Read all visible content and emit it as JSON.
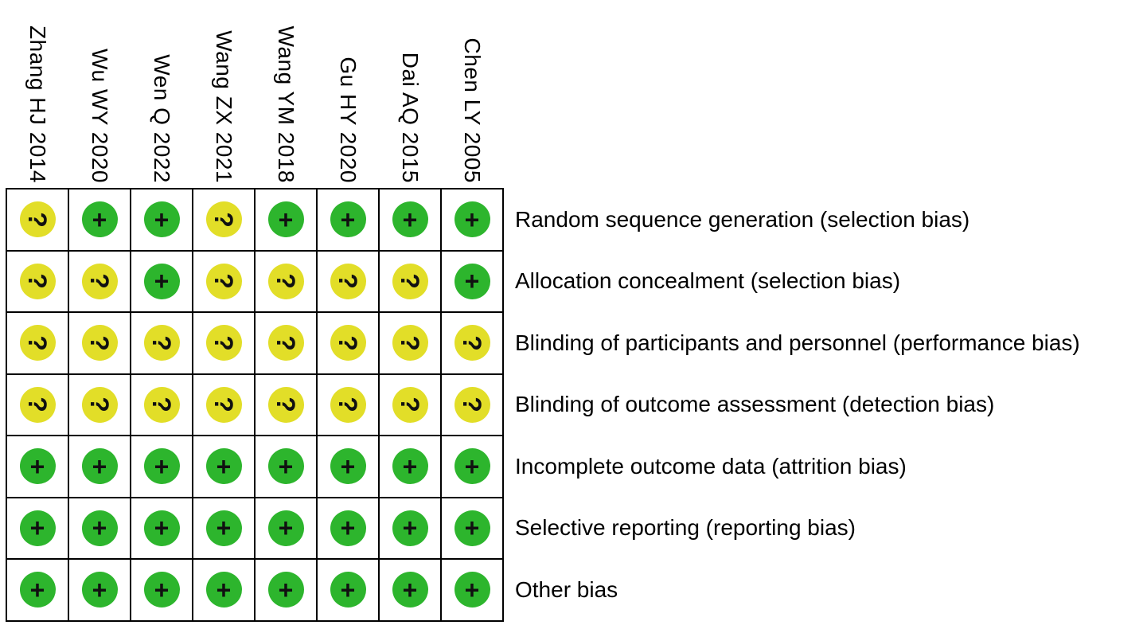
{
  "figure": {
    "studies": [
      "Zhang HJ 2014",
      "Wu WY 2020",
      "Wen Q 2022",
      "Wang ZX 2021",
      "Wang YM 2018",
      "Gu HY 2020",
      "Dai AQ 2015",
      "Chen LY 2005"
    ],
    "domains": [
      {
        "label": "Random sequence generation (selection bias)",
        "judgements": [
          "unclear",
          "low",
          "low",
          "unclear",
          "low",
          "low",
          "low",
          "low"
        ]
      },
      {
        "label": "Allocation concealment (selection bias)",
        "judgements": [
          "unclear",
          "unclear",
          "low",
          "unclear",
          "unclear",
          "unclear",
          "unclear",
          "low"
        ]
      },
      {
        "label": "Blinding of participants and personnel (performance bias)",
        "judgements": [
          "unclear",
          "unclear",
          "unclear",
          "unclear",
          "unclear",
          "unclear",
          "unclear",
          "unclear"
        ]
      },
      {
        "label": "Blinding of outcome assessment (detection bias)",
        "judgements": [
          "unclear",
          "unclear",
          "unclear",
          "unclear",
          "unclear",
          "unclear",
          "unclear",
          "unclear"
        ]
      },
      {
        "label": "Incomplete outcome data (attrition bias)",
        "judgements": [
          "low",
          "low",
          "low",
          "low",
          "low",
          "low",
          "low",
          "low"
        ]
      },
      {
        "label": "Selective reporting (reporting bias)",
        "judgements": [
          "low",
          "low",
          "low",
          "low",
          "low",
          "low",
          "low",
          "low"
        ]
      },
      {
        "label": "Other bias",
        "judgements": [
          "low",
          "low",
          "low",
          "low",
          "low",
          "low",
          "low",
          "low"
        ]
      }
    ],
    "legend": {
      "low": {
        "symbol": "+",
        "color": "#2DB52D"
      },
      "unclear": {
        "symbol": "?",
        "color": "#E2DE28"
      }
    }
  },
  "chart_data": {
    "type": "heatmap",
    "columns": [
      "Zhang HJ 2014",
      "Wu WY 2020",
      "Wen Q 2022",
      "Wang ZX 2021",
      "Wang YM 2018",
      "Gu HY 2020",
      "Dai AQ 2015",
      "Chen LY 2005"
    ],
    "rows": [
      "Random sequence generation (selection bias)",
      "Allocation concealment (selection bias)",
      "Blinding of participants and personnel (performance bias)",
      "Blinding of outcome assessment (detection bias)",
      "Incomplete outcome data (attrition bias)",
      "Selective reporting (reporting bias)",
      "Other bias"
    ],
    "values": [
      [
        "?",
        "+",
        "+",
        "?",
        "+",
        "+",
        "+",
        "+"
      ],
      [
        "?",
        "?",
        "+",
        "?",
        "?",
        "?",
        "?",
        "+"
      ],
      [
        "?",
        "?",
        "?",
        "?",
        "?",
        "?",
        "?",
        "?"
      ],
      [
        "?",
        "?",
        "?",
        "?",
        "?",
        "?",
        "?",
        "?"
      ],
      [
        "+",
        "+",
        "+",
        "+",
        "+",
        "+",
        "+",
        "+"
      ],
      [
        "+",
        "+",
        "+",
        "+",
        "+",
        "+",
        "+",
        "+"
      ],
      [
        "+",
        "+",
        "+",
        "+",
        "+",
        "+",
        "+",
        "+"
      ]
    ],
    "symbol_colors": {
      "+": "#2DB52D",
      "?": "#E2DE28"
    },
    "grid": true,
    "legend_position": "none"
  }
}
